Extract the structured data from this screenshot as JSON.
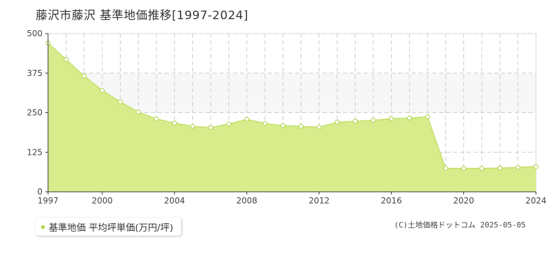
{
  "title": "藤沢市藤沢 基準地価推移[1997-2024]",
  "legend_label": "基準地価 平均坪単価(万円/坪)",
  "credit": "(C)土地価格ドットコム 2025-05-05",
  "colors": {
    "fill": "#d8ec8c",
    "line": "#c3e06a",
    "marker_fill": "#ffffff",
    "marker_stroke": "#b7d65a",
    "grid": "#cccccc",
    "band": "#f7f7f7",
    "axis": "#333333",
    "legend_swatch": "#b6d84c"
  },
  "chart_data": {
    "type": "area",
    "title": "藤沢市藤沢 基準地価推移[1997-2024]",
    "xlabel": "",
    "ylabel": "",
    "xlim": [
      1997,
      2024
    ],
    "ylim": [
      0,
      500
    ],
    "x_ticks": [
      1997,
      2000,
      2004,
      2008,
      2012,
      2016,
      2020,
      2024
    ],
    "y_ticks": [
      0,
      125,
      250,
      375,
      500
    ],
    "grid": true,
    "legend_position": "bottom-left",
    "series": [
      {
        "name": "基準地価 平均坪単価(万円/坪)",
        "x": [
          1997,
          1998,
          1999,
          2000,
          2001,
          2002,
          2003,
          2004,
          2005,
          2006,
          2007,
          2008,
          2009,
          2010,
          2011,
          2012,
          2013,
          2014,
          2015,
          2016,
          2017,
          2018,
          2019,
          2020,
          2021,
          2022,
          2023,
          2024
        ],
        "values": [
          470,
          418,
          366,
          320,
          284,
          252,
          230,
          217,
          207,
          203,
          214,
          229,
          216,
          209,
          207,
          204,
          220,
          223,
          226,
          231,
          233,
          237,
          74,
          74,
          74,
          75,
          77,
          80
        ]
      }
    ]
  }
}
